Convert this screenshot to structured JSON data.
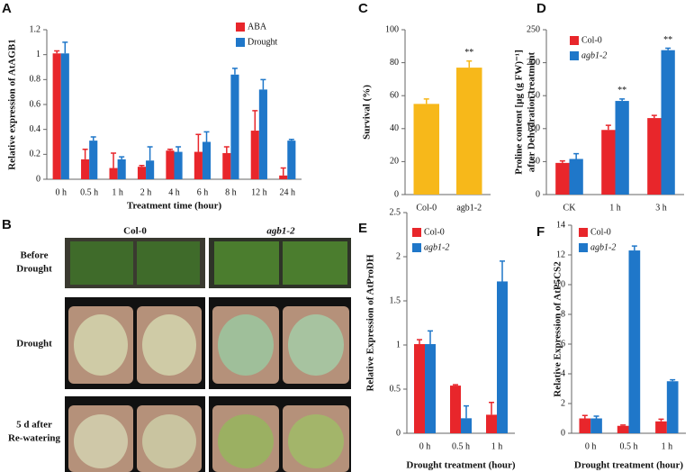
{
  "chart_data": [
    {
      "type": "bar",
      "panel": "A",
      "ylabel": "Relative expression of AtAGB1",
      "xlabel": "Treatment time (hour)",
      "categories": [
        "0 h",
        "0.5 h",
        "1 h",
        "2 h",
        "4 h",
        "6 h",
        "8 h",
        "12 h",
        "24 h"
      ],
      "series": [
        {
          "name": "ABA",
          "color": "#e8262b",
          "values": [
            1.01,
            0.16,
            0.09,
            0.1,
            0.23,
            0.22,
            0.21,
            0.39,
            0.03
          ],
          "errors": [
            0.02,
            0.08,
            0.12,
            0.01,
            0.01,
            0.14,
            0.05,
            0.16,
            0.06
          ]
        },
        {
          "name": "Drought",
          "color": "#1f77c9",
          "values": [
            1.01,
            0.31,
            0.16,
            0.15,
            0.22,
            0.3,
            0.84,
            0.72,
            0.31
          ],
          "errors": [
            0.09,
            0.03,
            0.02,
            0.11,
            0.04,
            0.08,
            0.05,
            0.08,
            0.01
          ]
        }
      ],
      "ylim": [
        0,
        1.2
      ],
      "yticks": [
        0,
        0.2,
        0.4,
        0.6,
        0.8,
        1,
        1.2
      ]
    },
    {
      "type": "bar",
      "panel": "C",
      "ylabel": "Survival (%)",
      "categories": [
        "Col-0",
        "agb1-2"
      ],
      "color": "#f7b81a",
      "values": [
        55,
        77
      ],
      "errors": [
        3,
        4
      ],
      "annotations": [
        {
          "text": "**",
          "x": "agb1-2"
        }
      ],
      "ylim": [
        0,
        100
      ],
      "yticks": [
        0,
        20,
        40,
        60,
        80,
        100
      ]
    },
    {
      "type": "bar",
      "panel": "D",
      "ylabel": [
        "Proline content [μg (g FW)⁻¹]",
        "after Dehydration treatment"
      ],
      "categories": [
        "CK",
        "1 h",
        "3 h"
      ],
      "series": [
        {
          "name": "Col-0",
          "color": "#e8262b",
          "values": [
            48,
            98,
            116
          ],
          "errors": [
            3,
            7,
            4
          ]
        },
        {
          "name": "agb1-2",
          "color": "#1f77c9",
          "values": [
            54,
            142,
            219
          ],
          "errors": [
            8,
            3,
            3
          ]
        }
      ],
      "annotations": [
        {
          "text": "**",
          "x": "1 h"
        },
        {
          "text": "**",
          "x": "3 h"
        }
      ],
      "ylim": [
        0,
        250
      ],
      "yticks": [
        0,
        50,
        100,
        150,
        200,
        250
      ]
    },
    {
      "type": "bar",
      "panel": "E",
      "ylabel": "Relative Expression of AtProDH",
      "xlabel": "Drought treatment (hour)",
      "categories": [
        "0 h",
        "0.5 h",
        "1 h"
      ],
      "series": [
        {
          "name": "Col-0",
          "color": "#e8262b",
          "values": [
            1.01,
            0.54,
            0.21
          ],
          "errors": [
            0.05,
            0.01,
            0.14
          ]
        },
        {
          "name": "agb1-2",
          "color": "#1f77c9",
          "values": [
            1.01,
            0.17,
            1.72
          ],
          "errors": [
            0.15,
            0.14,
            0.23
          ]
        }
      ],
      "ylim": [
        0,
        2.5
      ],
      "yticks": [
        0,
        0.5,
        1,
        1.5,
        2,
        2.5
      ]
    },
    {
      "type": "bar",
      "panel": "F",
      "ylabel": "Relative Expression of AtP5CS2",
      "xlabel": "Drought treatment (hour)",
      "categories": [
        "0 h",
        "0.5 h",
        "1 h"
      ],
      "series": [
        {
          "name": "Col-0",
          "color": "#e8262b",
          "values": [
            1.0,
            0.5,
            0.8
          ],
          "errors": [
            0.2,
            0.05,
            0.15
          ]
        },
        {
          "name": "agb1-2",
          "color": "#1f77c9",
          "values": [
            1.0,
            12.3,
            3.5
          ],
          "errors": [
            0.15,
            0.3,
            0.1
          ]
        }
      ],
      "ylim": [
        0,
        14
      ],
      "yticks": [
        0,
        2,
        4,
        6,
        8,
        10,
        12,
        14
      ]
    }
  ],
  "photo_panel": {
    "panel": "B",
    "columns": [
      "Col-0",
      "agb1-2"
    ],
    "rows": [
      [
        "Before",
        "Drought"
      ],
      [
        "Drought"
      ],
      [
        "5 d after",
        "Re-watering"
      ]
    ]
  }
}
